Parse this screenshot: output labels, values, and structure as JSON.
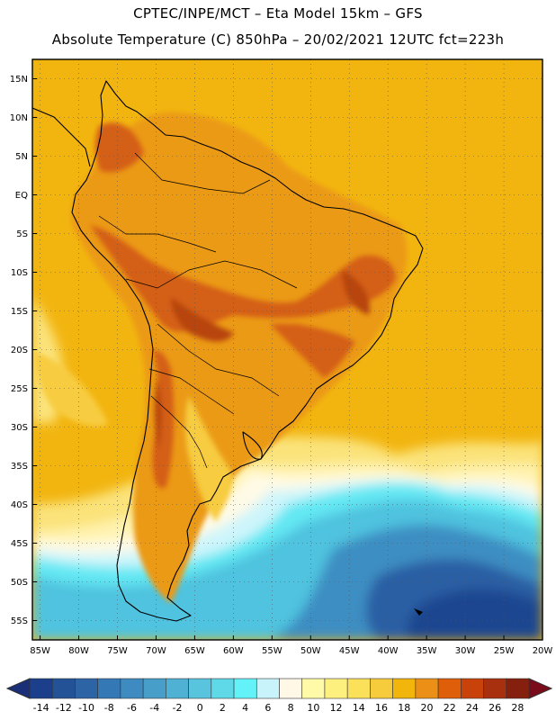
{
  "header": {
    "line1": "CPTEC/INPE/MCT –  Eta Model 15km – GFS",
    "line2": "Absolute Temperature (C) 850hPa – 20/02/2021 12UTC fct=223h"
  },
  "map": {
    "region": "South America",
    "lat_labels": [
      "15N",
      "10N",
      "5N",
      "EQ",
      "5S",
      "10S",
      "15S",
      "20S",
      "25S",
      "30S",
      "35S",
      "40S",
      "45S",
      "50S",
      "55S"
    ],
    "lat_values": [
      15,
      10,
      5,
      0,
      -5,
      -10,
      -15,
      -20,
      -25,
      -30,
      -35,
      -40,
      -45,
      -50,
      -55
    ],
    "lon_labels": [
      "85W",
      "80W",
      "75W",
      "70W",
      "65W",
      "60W",
      "55W",
      "50W",
      "45W",
      "40W",
      "35W",
      "30W",
      "25W",
      "20W"
    ],
    "lon_values": [
      -85,
      -80,
      -75,
      -70,
      -65,
      -60,
      -55,
      -50,
      -45,
      -40,
      -35,
      -30,
      -25,
      -20
    ],
    "lat_range": [
      -57.5,
      17.5
    ],
    "lon_range": [
      -86,
      -20
    ]
  },
  "colorbar": {
    "labels": [
      "-14",
      "-12",
      "-10",
      "-8",
      "-6",
      "-4",
      "-2",
      "0",
      "2",
      "4",
      "6",
      "8",
      "10",
      "12",
      "14",
      "16",
      "18",
      "20",
      "22",
      "24",
      "26",
      "28"
    ],
    "colors": [
      "#1c3f8c",
      "#245297",
      "#2c64a6",
      "#3478b5",
      "#3d8bc0",
      "#469ec9",
      "#4fb1d3",
      "#59c4dd",
      "#5fd8e8",
      "#63f2f7",
      "#c9f3fb",
      "#fff8e6",
      "#fffaa8",
      "#fdf07f",
      "#fbe05a",
      "#f6cc3c",
      "#f2b50b",
      "#eb8f16",
      "#de5e0a",
      "#c8420a",
      "#a8300e",
      "#86200e"
    ],
    "low_arrow_color": "#1a2f77",
    "high_arrow_color": "#7a0b1a"
  },
  "field_colors": {
    "background": "#f2b510",
    "land": "#eb9a14",
    "hot": "#d45e16",
    "hottest": "#b74410",
    "warm_light": "#f7cc3f",
    "yellow": "#fbe37a",
    "pale": "#fff3b0",
    "cream": "#fffae6",
    "pale_cyan": "#cdf5fb",
    "cyan": "#63e8f3",
    "sky": "#4fc3df",
    "blue": "#3d8ec2",
    "dark_blue": "#2c5ea4",
    "navy": "#1f4690"
  }
}
